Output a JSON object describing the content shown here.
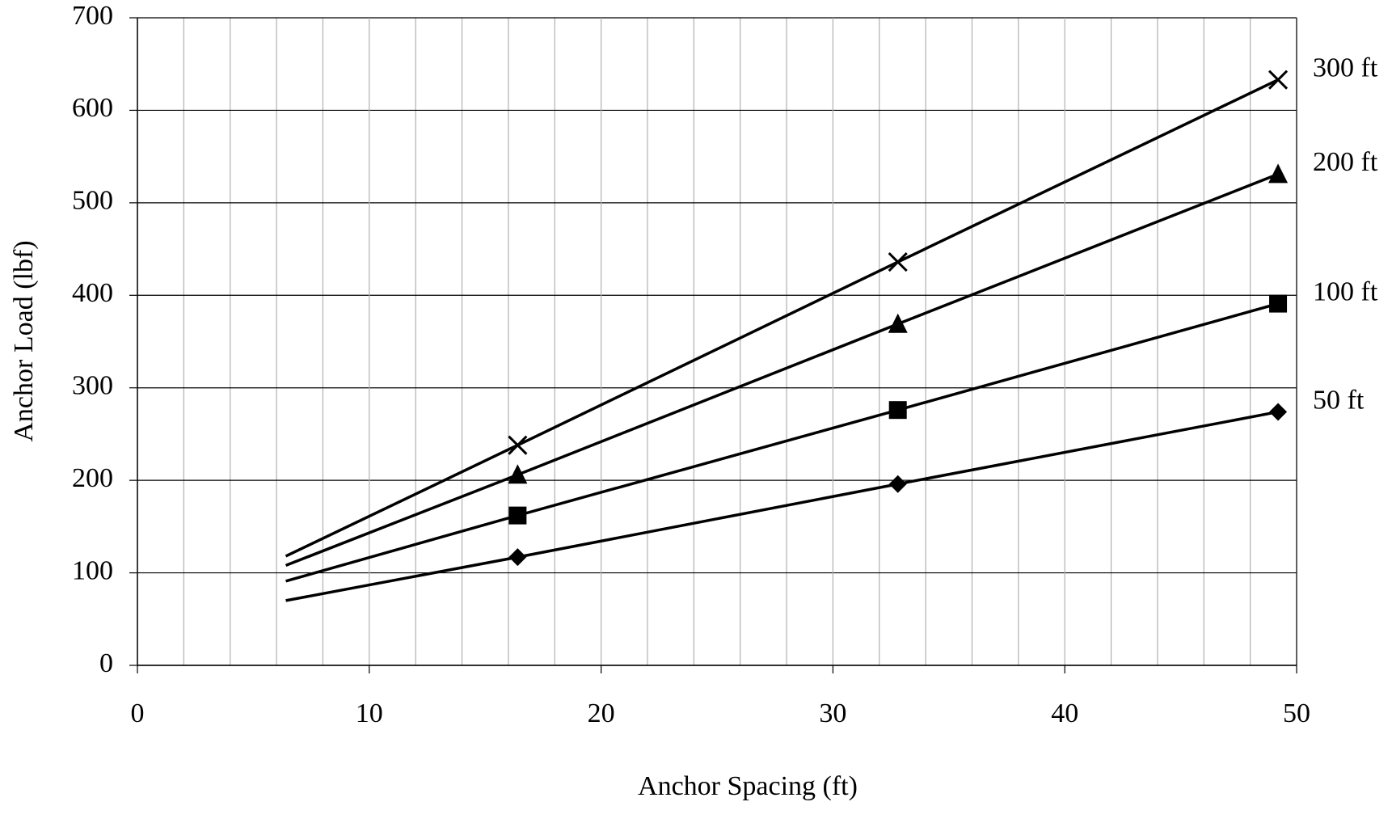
{
  "chart_data": {
    "type": "line",
    "x_label": "Anchor Spacing (ft)",
    "y_label": "Anchor Load (lbf)",
    "x": [
      6.4,
      16.4,
      32.8,
      49.2
    ],
    "series": [
      {
        "name": "50 ft",
        "color": "#000000",
        "marker": "diamond",
        "values": [
          70,
          117,
          196,
          274
        ]
      },
      {
        "name": "100 ft",
        "color": "#000000",
        "marker": "square",
        "values": [
          91,
          162,
          276,
          391
        ]
      },
      {
        "name": "200 ft",
        "color": "#000000",
        "marker": "triangle",
        "values": [
          108,
          206,
          369,
          531
        ]
      },
      {
        "name": "300 ft",
        "color": "#000000",
        "marker": "cross",
        "values": [
          118,
          238,
          436,
          633
        ]
      }
    ],
    "show_markers": [
      false,
      true,
      true,
      true
    ],
    "xlim": [
      0,
      50
    ],
    "xticks": [
      0,
      10,
      20,
      30,
      40,
      50
    ],
    "x_minor_grid": [
      2,
      4,
      6,
      8,
      12,
      14,
      16,
      18,
      22,
      24,
      26,
      28,
      32,
      34,
      36,
      38,
      42,
      44,
      46,
      48
    ],
    "ylim": [
      0,
      700
    ],
    "yticks": [
      0,
      100,
      200,
      300,
      400,
      500,
      600,
      700
    ],
    "grid": true,
    "legend": "right"
  }
}
